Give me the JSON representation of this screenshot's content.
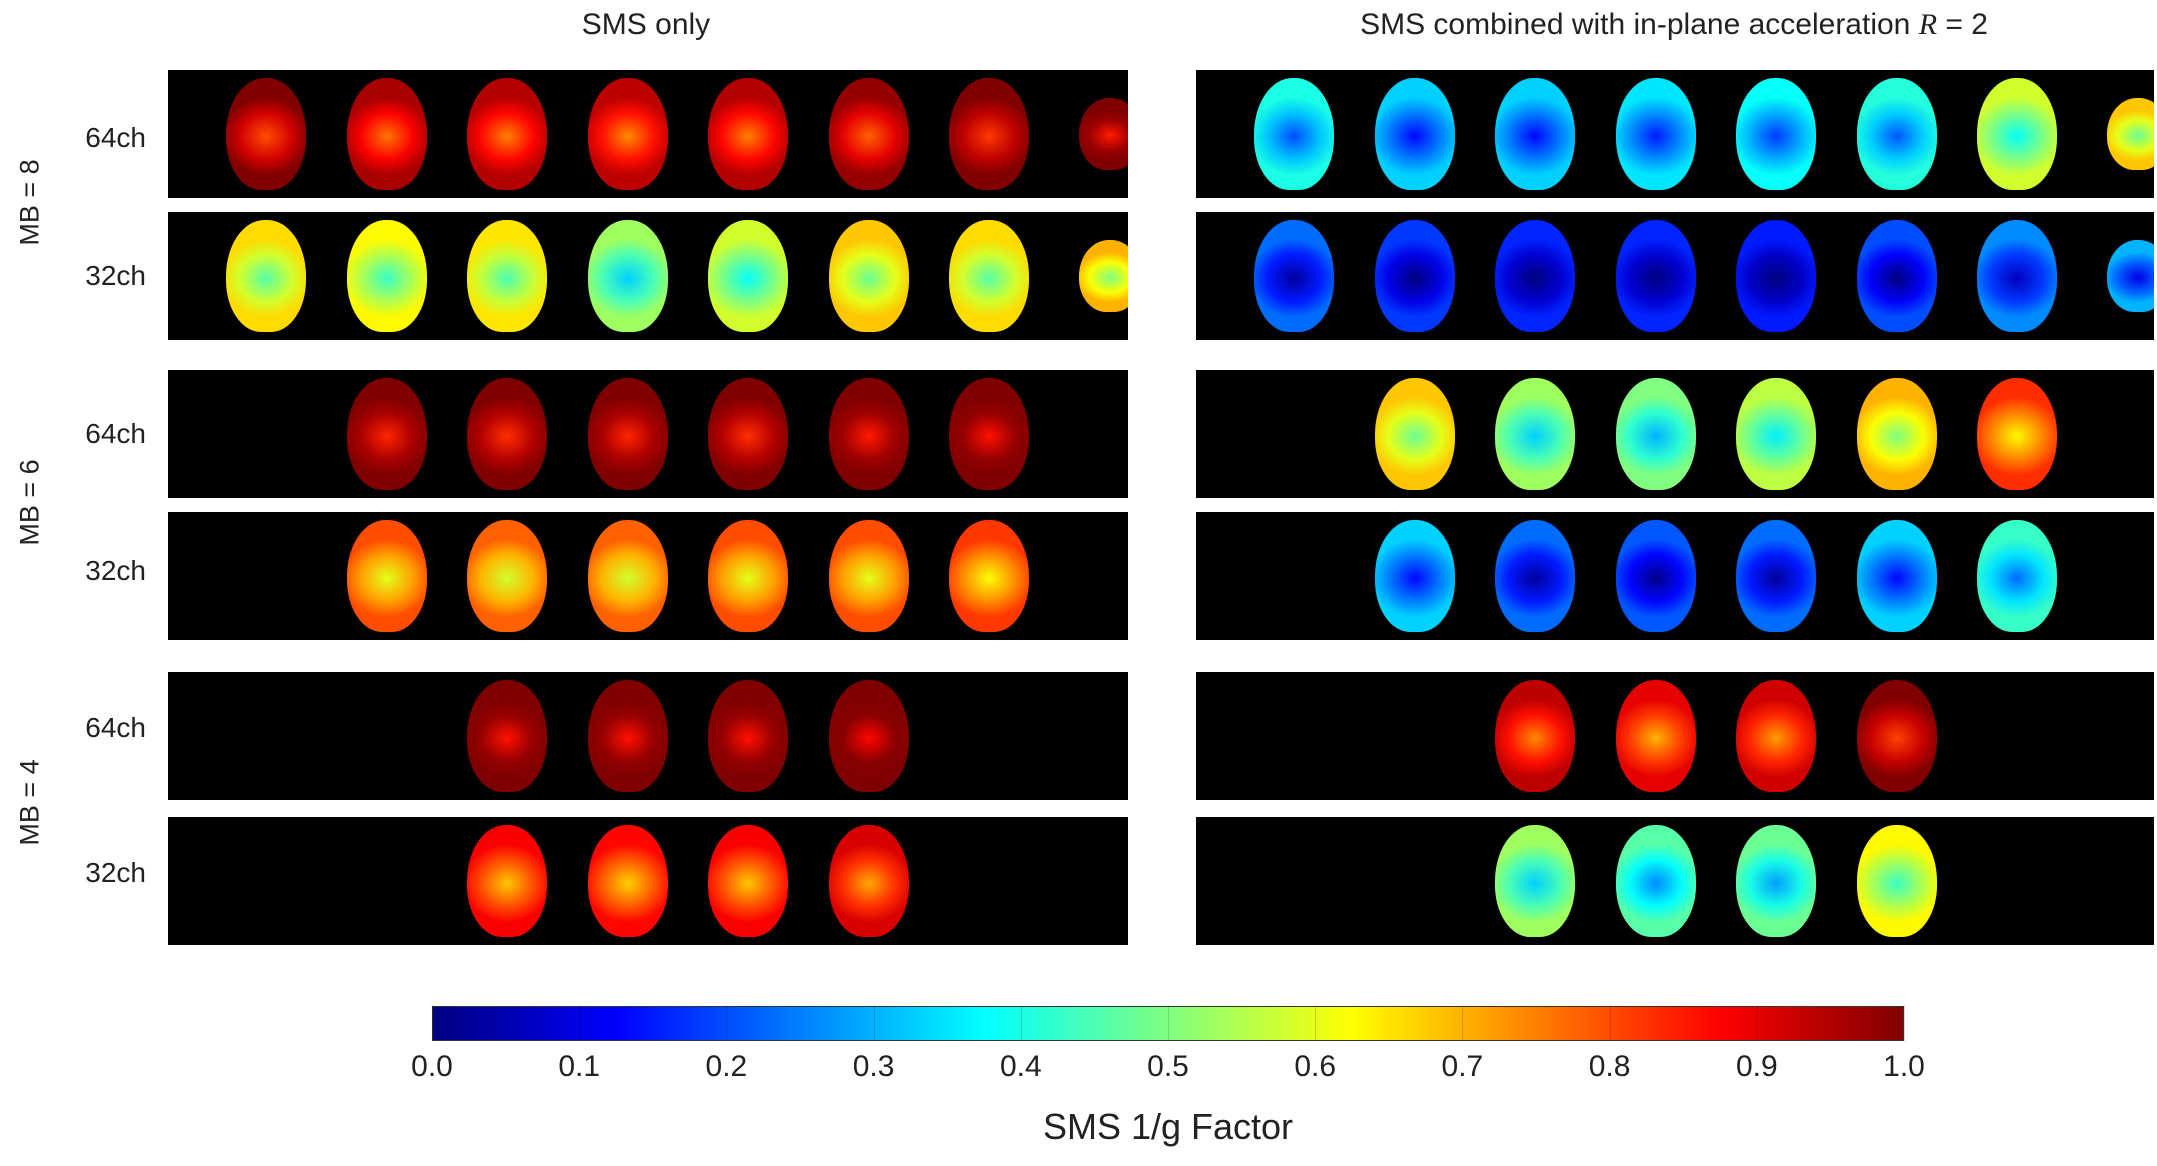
{
  "titles": {
    "left": "SMS only",
    "right_prefix": "SMS combined with in-plane acceleration ",
    "right_var": "R",
    "right_suffix": " = 2"
  },
  "group_labels": [
    "MB = 8",
    "MB = 6",
    "MB = 4"
  ],
  "row_labels": [
    "64ch",
    "32ch",
    "64ch",
    "32ch",
    "64ch",
    "32ch"
  ],
  "colorbar": {
    "ticks": [
      "0.0",
      "0.1",
      "0.2",
      "0.3",
      "0.4",
      "0.5",
      "0.6",
      "0.7",
      "0.8",
      "0.9",
      "1.0"
    ],
    "title": "SMS 1/g Factor",
    "colormap": "jet"
  },
  "panels": {
    "left": [
      {
        "group": "MB = 8",
        "coil": "64ch",
        "slices": [
          0.92,
          0.88,
          0.87,
          0.86,
          0.87,
          0.9,
          0.94,
          0.97
        ]
      },
      {
        "group": "MB = 8",
        "coil": "32ch",
        "slices": [
          0.58,
          0.55,
          0.57,
          0.45,
          0.5,
          0.6,
          0.58,
          0.62
        ]
      },
      {
        "group": "MB = 6",
        "coil": "64ch",
        "slices": [
          0.96,
          0.95,
          0.96,
          0.95,
          0.97,
          0.98
        ]
      },
      {
        "group": "MB = 6",
        "coil": "32ch",
        "slices": [
          0.72,
          0.7,
          0.7,
          0.72,
          0.72,
          0.74
        ]
      },
      {
        "group": "MB = 4",
        "coil": "64ch",
        "slices": [
          0.98,
          0.98,
          0.98,
          0.99
        ]
      },
      {
        "group": "MB = 4",
        "coil": "32ch",
        "slices": [
          0.8,
          0.79,
          0.8,
          0.83
        ]
      }
    ],
    "right": [
      {
        "group": "MB = 8",
        "coil": "64ch",
        "slices": [
          0.32,
          0.25,
          0.25,
          0.27,
          0.3,
          0.33,
          0.5,
          0.6
        ]
      },
      {
        "group": "MB = 8",
        "coil": "32ch",
        "slices": [
          0.15,
          0.1,
          0.08,
          0.08,
          0.07,
          0.12,
          0.18,
          0.22
        ]
      },
      {
        "group": "MB = 6",
        "coil": "64ch",
        "slices": [
          0.6,
          0.45,
          0.42,
          0.48,
          0.62,
          0.75
        ]
      },
      {
        "group": "MB = 6",
        "coil": "32ch",
        "slices": [
          0.25,
          0.15,
          0.13,
          0.15,
          0.25,
          0.35
        ]
      },
      {
        "group": "MB = 4",
        "coil": "64ch",
        "slices": [
          0.86,
          0.82,
          0.84,
          0.93
        ]
      },
      {
        "group": "MB = 4",
        "coil": "32ch",
        "slices": [
          0.45,
          0.38,
          0.4,
          0.55
        ]
      }
    ]
  }
}
